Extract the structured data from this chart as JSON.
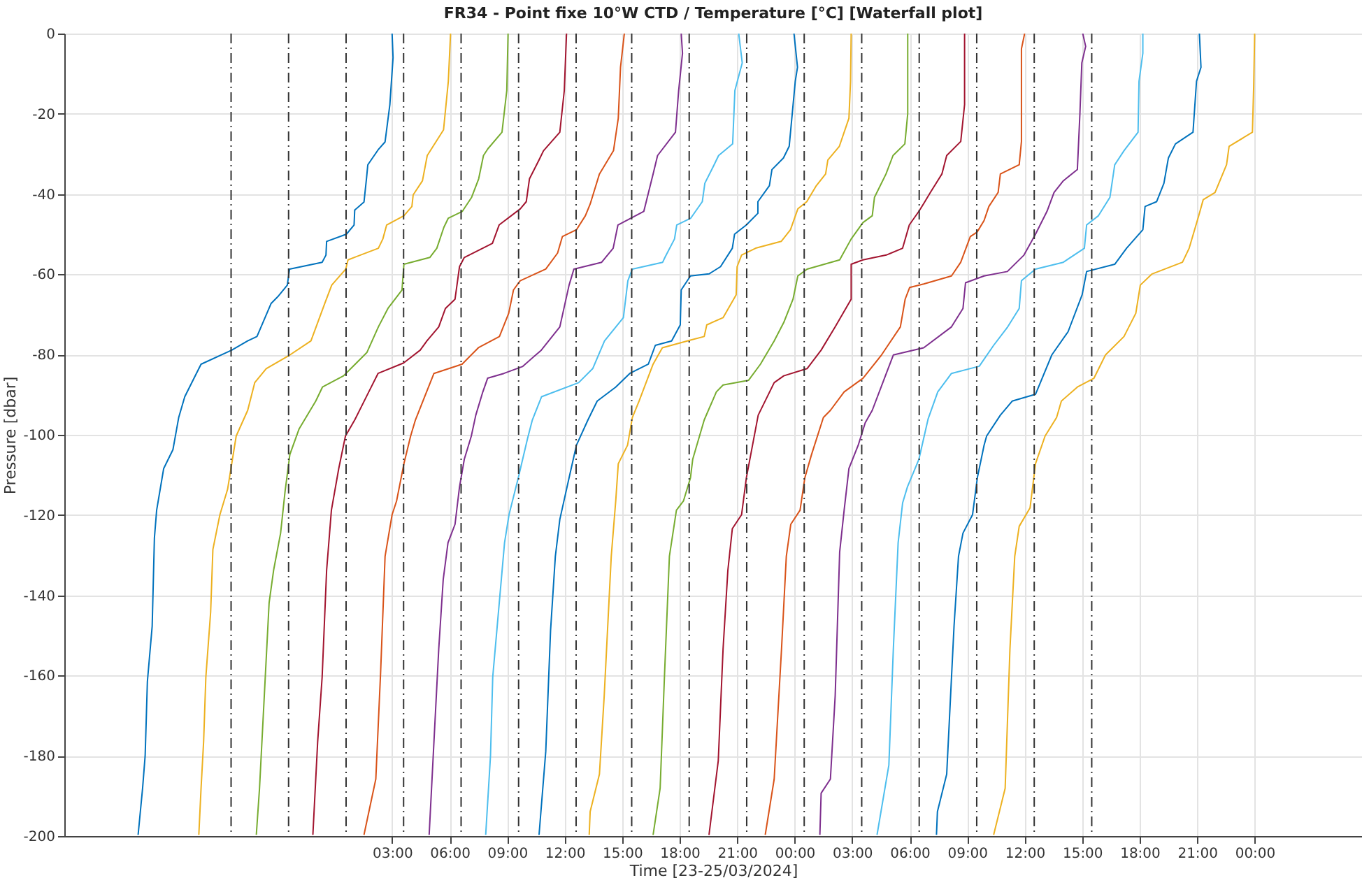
{
  "chart_data": {
    "type": "line",
    "title": "FR34 - Point fixe 10°W CTD / Temperature [°C] [Waterfall plot]",
    "xlabel": "Time [23-25/03/2024]",
    "ylabel": "Pressure [dbar]",
    "xlim": [
      "2024-03-22T09:54",
      "2024-03-25T05:36"
    ],
    "ylim": [
      -200,
      0
    ],
    "xticks": [
      {
        "value": "2024-03-23T03:00",
        "label": "03:00"
      },
      {
        "value": "2024-03-23T06:00",
        "label": "06:00"
      },
      {
        "value": "2024-03-23T09:00",
        "label": "09:00"
      },
      {
        "value": "2024-03-23T12:00",
        "label": "12:00"
      },
      {
        "value": "2024-03-23T15:00",
        "label": "15:00"
      },
      {
        "value": "2024-03-23T18:00",
        "label": "18:00"
      },
      {
        "value": "2024-03-23T21:00",
        "label": "21:00"
      },
      {
        "value": "2024-03-24T00:00",
        "label": "00:00"
      },
      {
        "value": "2024-03-24T03:00",
        "label": "03:00"
      },
      {
        "value": "2024-03-24T06:00",
        "label": "06:00"
      },
      {
        "value": "2024-03-24T09:00",
        "label": "09:00"
      },
      {
        "value": "2024-03-24T12:00",
        "label": "12:00"
      },
      {
        "value": "2024-03-24T15:00",
        "label": "15:00"
      },
      {
        "value": "2024-03-24T18:00",
        "label": "18:00"
      },
      {
        "value": "2024-03-24T21:00",
        "label": "21:00"
      },
      {
        "value": "2024-03-25T00:00",
        "label": "00:00"
      }
    ],
    "yticks": [
      -200,
      -180,
      -160,
      -140,
      -120,
      -100,
      -80,
      -60,
      -40,
      -20,
      0
    ],
    "grid": true,
    "line_style": "solid",
    "series": [
      {
        "color": "#0072bd",
        "x": [
          "2024-03-23T03:00",
          "2024-03-23T03:03",
          "2024-03-23T02:53",
          "2024-03-23T02:38",
          "2024-03-23T02:16",
          "2024-03-23T01:44",
          "2024-03-23T01:40",
          "2024-03-23T01:32",
          "2024-03-23T01:03",
          "2024-03-23T01:01",
          "2024-03-23T00:37",
          "2024-03-22T23:35",
          "2024-03-22T23:33",
          "2024-03-22T23:21",
          "2024-03-22T21:39",
          "2024-03-22T21:32",
          "2024-03-22T21:02",
          "2024-03-22T20:41",
          "2024-03-22T19:57",
          "2024-03-22T19:28",
          "2024-03-22T18:38",
          "2024-03-22T17:02",
          "2024-03-22T16:40",
          "2024-03-22T16:11",
          "2024-03-22T15:52",
          "2024-03-22T15:34",
          "2024-03-22T15:05",
          "2024-03-22T14:43",
          "2024-03-22T14:36",
          "2024-03-22T14:29",
          "2024-03-22T14:14",
          "2024-03-22T14:07",
          "2024-03-22T13:59",
          "2024-03-22T13:45"
        ],
        "values": [
          0,
          -6,
          -17.7,
          -27,
          -29,
          -32.7,
          -36,
          -42,
          -44,
          -47.7,
          -50,
          -51.8,
          -55.2,
          -57,
          -58.7,
          -62.7,
          -65.6,
          -67.3,
          -75.5,
          -76.6,
          -78.9,
          -82.4,
          -85.9,
          -90.5,
          -95.7,
          -103.7,
          -108.4,
          -118.8,
          -125.7,
          -147.7,
          -161.5,
          -180,
          -188.1,
          -199.7
        ]
      },
      {
        "color": "#edb120",
        "x": [
          "2024-03-23T06:03",
          "2024-03-23T05:56",
          "2024-03-23T05:41",
          "2024-03-23T04:50",
          "2024-03-23T04:35",
          "2024-03-23T04:06",
          "2024-03-23T04:02",
          "2024-03-23T03:37",
          "2024-03-23T02:43",
          "2024-03-23T02:31",
          "2024-03-23T02:17",
          "2024-03-23T00:42",
          "2024-03-23T00:35",
          "2024-03-22T23:51",
          "2024-03-22T23:29",
          "2024-03-22T22:46",
          "2024-03-22T21:40",
          "2024-03-22T20:26",
          "2024-03-22T19:50",
          "2024-03-22T19:28",
          "2024-03-22T18:52",
          "2024-03-22T18:25",
          "2024-03-22T18:01",
          "2024-03-22T17:39",
          "2024-03-22T17:32",
          "2024-03-22T17:17",
          "2024-03-22T17:10",
          "2024-03-22T17:02",
          "2024-03-22T16:55"
        ],
        "values": [
          0,
          -11.9,
          -24,
          -30.4,
          -36.7,
          -40.2,
          -43.1,
          -45.4,
          -47.7,
          -51.2,
          -53.5,
          -56.4,
          -58.7,
          -62.7,
          -67.3,
          -76.6,
          -80.1,
          -83.5,
          -87,
          -93.9,
          -100.3,
          -113.6,
          -119.9,
          -128.6,
          -144.2,
          -160.4,
          -176.5,
          -188.1,
          -199.7
        ]
      },
      {
        "color": "#77ac30",
        "x": [
          "2024-03-23T09:03",
          "2024-03-23T08:59",
          "2024-03-23T08:44",
          "2024-03-23T08:00",
          "2024-03-23T07:46",
          "2024-03-23T07:31",
          "2024-03-23T07:09",
          "2024-03-23T06:40",
          "2024-03-23T05:56",
          "2024-03-23T05:42",
          "2024-03-23T05:20",
          "2024-03-23T04:58",
          "2024-03-23T03:37",
          "2024-03-23T03:31",
          "2024-03-23T02:47",
          "2024-03-23T02:17",
          "2024-03-23T01:41",
          "2024-03-23T00:28",
          "2024-03-22T23:22",
          "2024-03-22T23:01",
          "2024-03-22T22:09",
          "2024-03-22T21:40",
          "2024-03-22T21:25",
          "2024-03-22T21:11",
          "2024-03-22T20:49",
          "2024-03-22T20:35",
          "2024-03-22T20:20",
          "2024-03-22T20:05",
          "2024-03-22T19:55"
        ],
        "values": [
          0,
          -14.2,
          -24.6,
          -28.7,
          -30.4,
          -36.2,
          -40.8,
          -44.3,
          -46,
          -48.3,
          -53.5,
          -55.8,
          -57.5,
          -63.9,
          -68.5,
          -73.1,
          -79.5,
          -85.3,
          -88.1,
          -91.6,
          -98.5,
          -104.9,
          -114.1,
          -124.5,
          -133.8,
          -141.9,
          -165,
          -188.1,
          -199.7
        ]
      },
      {
        "color": "#a2142f",
        "x": [
          "2024-03-23T12:06",
          "2024-03-23T11:59",
          "2024-03-23T11:45",
          "2024-03-23T10:54",
          "2024-03-23T10:40",
          "2024-03-23T10:10",
          "2024-03-23T10:00",
          "2024-03-23T09:41",
          "2024-03-23T08:35",
          "2024-03-23T08:14",
          "2024-03-23T06:46",
          "2024-03-23T06:31",
          "2024-03-23T06:17",
          "2024-03-23T05:47",
          "2024-03-23T05:26",
          "2024-03-23T04:49",
          "2024-03-23T04:28",
          "2024-03-23T03:36",
          "2024-03-23T02:16",
          "2024-03-23T01:47",
          "2024-03-23T01:03",
          "2024-03-23T00:34",
          "2024-03-23T00:13",
          "2024-03-22T23:50",
          "2024-03-22T23:35",
          "2024-03-22T23:21",
          "2024-03-22T23:07",
          "2024-03-22T22:52"
        ],
        "values": [
          0,
          -14.2,
          -24.6,
          -29.2,
          -31.5,
          -36.2,
          -41.9,
          -43.7,
          -47.7,
          -52.3,
          -55.8,
          -58.1,
          -66.2,
          -68.5,
          -73.1,
          -76.6,
          -78.9,
          -82.1,
          -84.7,
          -89.3,
          -96.3,
          -100.3,
          -108.4,
          -118.8,
          -133.8,
          -160.4,
          -176.5,
          -199.7
        ]
      },
      {
        "color": "#d95319",
        "x": [
          "2024-03-23T15:07",
          "2024-03-23T14:55",
          "2024-03-23T14:48",
          "2024-03-23T14:33",
          "2024-03-23T13:49",
          "2024-03-23T13:20",
          "2024-03-23T13:05",
          "2024-03-23T12:37",
          "2024-03-23T11:53",
          "2024-03-23T11:38",
          "2024-03-23T11:01",
          "2024-03-23T09:41",
          "2024-03-23T09:20",
          "2024-03-23T09:05",
          "2024-03-23T08:36",
          "2024-03-23T07:30",
          "2024-03-23T06:39",
          "2024-03-23T05:11",
          "2024-03-23T04:42",
          "2024-03-23T04:13",
          "2024-03-23T03:58",
          "2024-03-23T03:51",
          "2024-03-23T03:37",
          "2024-03-23T03:14",
          "2024-03-23T03:00",
          "2024-03-23T02:38",
          "2024-03-23T02:24",
          "2024-03-23T02:09",
          "2024-03-23T01:32"
        ],
        "values": [
          0,
          -8.4,
          -21.1,
          -29.2,
          -35,
          -42.5,
          -45.4,
          -48.9,
          -50.6,
          -54.7,
          -58.7,
          -61.6,
          -63.9,
          -69.7,
          -75.5,
          -78.3,
          -82.4,
          -84.7,
          -90.5,
          -96.3,
          -100.3,
          -102.6,
          -107.2,
          -116.5,
          -119.9,
          -130.3,
          -159.3,
          -185.8,
          -199.7
        ]
      },
      {
        "color": "#7e2f8e",
        "x": [
          "2024-03-23T18:05",
          "2024-03-23T18:09",
          "2024-03-23T17:57",
          "2024-03-23T17:47",
          "2024-03-23T16:51",
          "2024-03-23T16:37",
          "2024-03-23T16:08",
          "2024-03-23T14:47",
          "2024-03-23T14:32",
          "2024-03-23T13:56",
          "2024-03-23T12:29",
          "2024-03-23T12:14",
          "2024-03-23T11:45",
          "2024-03-23T10:47",
          "2024-03-23T09:48",
          "2024-03-23T08:50",
          "2024-03-23T07:59",
          "2024-03-23T07:44",
          "2024-03-23T07:22",
          "2024-03-23T07:08",
          "2024-03-23T06:46",
          "2024-03-23T06:31",
          "2024-03-23T06:17",
          "2024-03-23T05:55",
          "2024-03-23T05:40",
          "2024-03-23T05:26",
          "2024-03-23T05:11",
          "2024-03-23T04:56"
        ],
        "values": [
          0,
          -4.9,
          -14.2,
          -24.6,
          -30.4,
          -35,
          -44.3,
          -47.7,
          -53.5,
          -57,
          -58.7,
          -62.7,
          -73.1,
          -78.9,
          -83,
          -84.7,
          -85.9,
          -89.3,
          -95.1,
          -100.3,
          -106.1,
          -113,
          -122.3,
          -126.9,
          -136.1,
          -153.4,
          -176.5,
          -199.7
        ]
      },
      {
        "color": "#4dbeee",
        "x": [
          "2024-03-23T21:05",
          "2024-03-23T21:16",
          "2024-03-23T20:53",
          "2024-03-23T20:46",
          "2024-03-23T20:02",
          "2024-03-23T19:48",
          "2024-03-23T19:19",
          "2024-03-23T19:11",
          "2024-03-23T18:35",
          "2024-03-23T17:51",
          "2024-03-23T17:44",
          "2024-03-23T17:14",
          "2024-03-23T17:07",
          "2024-03-23T15:32",
          "2024-03-23T15:18",
          "2024-03-23T15:04",
          "2024-03-23T14:05",
          "2024-03-23T13:28",
          "2024-03-23T12:44",
          "2024-03-23T10:48",
          "2024-03-23T10:19",
          "2024-03-23T10:04",
          "2024-03-23T09:35",
          "2024-03-23T09:06",
          "2024-03-23T08:52",
          "2024-03-23T08:29",
          "2024-03-23T08:15",
          "2024-03-23T08:08",
          "2024-03-23T07:53"
        ],
        "values": [
          0,
          -7.3,
          -14.2,
          -27.5,
          -30.4,
          -32.7,
          -37.3,
          -41.9,
          -46,
          -47.7,
          -51.2,
          -55.8,
          -57,
          -58.7,
          -61.6,
          -70.8,
          -76.6,
          -83.5,
          -87,
          -90.5,
          -96.3,
          -100.9,
          -110.7,
          -119.9,
          -126.9,
          -147.7,
          -160.4,
          -180,
          -199.7
        ]
      },
      {
        "color": "#0072bd",
        "x": [
          "2024-03-23T23:58",
          "2024-03-24T00:09",
          "2024-03-24T00:02",
          "2024-03-23T23:43",
          "2024-03-23T23:25",
          "2024-03-23T22:49",
          "2024-03-23T22:41",
          "2024-03-23T22:05",
          "2024-03-23T22:05",
          "2024-03-23T21:29",
          "2024-03-23T20:52",
          "2024-03-23T20:45",
          "2024-03-23T20:08",
          "2024-03-23T19:32",
          "2024-03-23T18:34",
          "2024-03-23T18:05",
          "2024-03-23T18:02",
          "2024-03-23T17:35",
          "2024-03-23T16:44",
          "2024-03-23T16:22",
          "2024-03-23T15:24",
          "2024-03-23T14:40",
          "2024-03-23T13:42",
          "2024-03-23T13:13",
          "2024-03-23T12:37",
          "2024-03-23T12:14",
          "2024-03-23T11:45",
          "2024-03-23T11:31",
          "2024-03-23T11:16",
          "2024-03-23T11:01",
          "2024-03-23T10:40"
        ],
        "values": [
          0,
          -8.4,
          -11.9,
          -28.1,
          -31,
          -33.9,
          -37.9,
          -41.9,
          -44.8,
          -47.7,
          -50,
          -53.5,
          -58.1,
          -59.9,
          -60.4,
          -63.9,
          -72.6,
          -76.6,
          -77.7,
          -82.4,
          -84.7,
          -88.1,
          -91.6,
          -96.3,
          -102.6,
          -110.7,
          -121.1,
          -130.3,
          -148.8,
          -178.9,
          -199.7
        ]
      },
      {
        "color": "#edb120",
        "x": [
          "2024-03-24T02:57",
          "2024-03-24T02:55",
          "2024-03-24T02:50",
          "2024-03-24T02:20",
          "2024-03-24T01:44",
          "2024-03-24T01:37",
          "2024-03-24T01:08",
          "2024-03-24T00:38",
          "2024-03-24T00:10",
          "2024-03-23T23:47",
          "2024-03-23T23:18",
          "2024-03-23T21:58",
          "2024-03-23T21:14",
          "2024-03-23T21:00",
          "2024-03-23T20:57",
          "2024-03-23T20:16",
          "2024-03-23T19:25",
          "2024-03-23T19:17",
          "2024-03-23T18:34",
          "2024-03-23T17:06",
          "2024-03-23T16:37",
          "2024-03-23T15:53",
          "2024-03-23T15:32",
          "2024-03-23T15:17",
          "2024-03-23T14:48",
          "2024-03-23T14:40",
          "2024-03-23T14:26",
          "2024-03-23T14:04",
          "2024-03-23T13:49",
          "2024-03-23T13:20",
          "2024-03-23T13:17"
        ],
        "values": [
          0,
          -11.9,
          -21.1,
          -28.1,
          -31.5,
          -35,
          -37.9,
          -41.9,
          -43.7,
          -48.9,
          -51.8,
          -53.5,
          -55.2,
          -58.1,
          -65.1,
          -70.8,
          -72.6,
          -75.5,
          -76.4,
          -78.3,
          -82.4,
          -91.6,
          -95.7,
          -102.6,
          -107.2,
          -116.5,
          -130.3,
          -165,
          -184.6,
          -193.9,
          -199.7
        ]
      },
      {
        "color": "#77ac30",
        "x": [
          "2024-03-24T05:54",
          "2024-03-24T05:54",
          "2024-03-24T05:45",
          "2024-03-24T05:08",
          "2024-03-24T04:46",
          "2024-03-24T04:10",
          "2024-03-24T04:03",
          "2024-03-24T03:34",
          "2024-03-24T02:57",
          "2024-03-24T02:21",
          "2024-03-24T00:39",
          "2024-03-24T00:10",
          "2024-03-23T23:55",
          "2024-03-23T23:26",
          "2024-03-23T22:56",
          "2024-03-23T22:13",
          "2024-03-23T21:36",
          "2024-03-23T20:16",
          "2024-03-23T19:55",
          "2024-03-23T19:17",
          "2024-03-23T18:41",
          "2024-03-23T18:34",
          "2024-03-23T18:12",
          "2024-03-23T17:50",
          "2024-03-23T17:28",
          "2024-03-23T17:13",
          "2024-03-23T16:59",
          "2024-03-23T16:37"
        ],
        "values": [
          0,
          -20,
          -27.5,
          -30.4,
          -35,
          -40.8,
          -45.4,
          -47.1,
          -51.2,
          -56.4,
          -58.7,
          -60.4,
          -66.2,
          -72,
          -76.6,
          -82.4,
          -86.4,
          -87.6,
          -89.3,
          -96.3,
          -106.1,
          -110.7,
          -116.5,
          -118.8,
          -130.3,
          -159.3,
          -188.1,
          -199.7
        ]
      },
      {
        "color": "#a2142f",
        "x": [
          "2024-03-24T08:52",
          "2024-03-24T08:52",
          "2024-03-24T08:40",
          "2024-03-24T07:56",
          "2024-03-24T07:41",
          "2024-03-24T07:05",
          "2024-03-24T06:43",
          "2024-03-24T06:29",
          "2024-03-24T05:59",
          "2024-03-24T05:38",
          "2024-03-24T04:47",
          "2024-03-24T03:34",
          "2024-03-24T02:57",
          "2024-03-24T02:57",
          "2024-03-24T02:07",
          "2024-03-24T01:23",
          "2024-03-24T00:39",
          "2024-03-23T23:26",
          "2024-03-23T22:56",
          "2024-03-23T22:06",
          "2024-03-23T21:29",
          "2024-03-23T21:14",
          "2024-03-23T20:45",
          "2024-03-23T20:31",
          "2024-03-23T20:16",
          "2024-03-23T20:01",
          "2024-03-23T19:32"
        ],
        "values": [
          0,
          -17.7,
          -26.9,
          -30.4,
          -35,
          -39.6,
          -42.5,
          -44.3,
          -47.7,
          -53.5,
          -55.2,
          -56.4,
          -57.5,
          -66.2,
          -73.1,
          -78.9,
          -83.5,
          -85.3,
          -87,
          -95.1,
          -110.7,
          -119.9,
          -123.4,
          -133.8,
          -153.4,
          -181.2,
          -199.7
        ]
      },
      {
        "color": "#d95319",
        "x": [
          "2024-03-24T12:00",
          "2024-03-24T11:50",
          "2024-03-24T11:50",
          "2024-03-24T11:43",
          "2024-03-24T10:44",
          "2024-03-24T10:37",
          "2024-03-24T10:08",
          "2024-03-24T09:53",
          "2024-03-24T09:31",
          "2024-03-24T09:10",
          "2024-03-24T08:40",
          "2024-03-24T08:11",
          "2024-03-24T06:44",
          "2024-03-24T06:00",
          "2024-03-24T05:46",
          "2024-03-24T05:31",
          "2024-03-24T04:32",
          "2024-03-24T03:34",
          "2024-03-24T02:35",
          "2024-03-24T01:52",
          "2024-03-24T01:30",
          "2024-03-24T00:53",
          "2024-03-24T00:32",
          "2024-03-24T00:17",
          "2024-03-23T23:48",
          "2024-03-23T23:34",
          "2024-03-23T23:19",
          "2024-03-23T22:56",
          "2024-03-23T22:28"
        ],
        "values": [
          0,
          -3.8,
          -26.9,
          -32.7,
          -35,
          -39.6,
          -43.1,
          -46.6,
          -49.5,
          -50.6,
          -57,
          -60.4,
          -62.4,
          -63.3,
          -66.2,
          -73.1,
          -80.1,
          -85.9,
          -89.3,
          -93.9,
          -95.7,
          -104.9,
          -110.7,
          -118.8,
          -122.3,
          -130.3,
          -153.4,
          -185.8,
          -199.7
        ]
      },
      {
        "color": "#7e2f8e",
        "x": [
          "2024-03-24T15:02",
          "2024-03-24T15:11",
          "2024-03-24T14:59",
          "2024-03-24T14:53",
          "2024-03-24T14:45",
          "2024-03-24T14:01",
          "2024-03-24T13:32",
          "2024-03-24T13:10",
          "2024-03-24T12:34",
          "2024-03-24T11:58",
          "2024-03-24T11:06",
          "2024-03-24T09:53",
          "2024-03-24T08:55",
          "2024-03-24T08:47",
          "2024-03-24T08:11",
          "2024-03-24T06:44",
          "2024-03-24T05:09",
          "2024-03-24T04:47",
          "2024-03-24T04:03",
          "2024-03-24T03:41",
          "2024-03-24T03:19",
          "2024-03-24T02:50",
          "2024-03-24T02:35",
          "2024-03-24T02:21",
          "2024-03-24T02:07",
          "2024-03-24T01:52",
          "2024-03-24T01:23",
          "2024-03-24T01:19"
        ],
        "values": [
          0,
          -3.2,
          -7.3,
          -20,
          -33.9,
          -36.7,
          -39.6,
          -44.3,
          -50,
          -55.2,
          -59.3,
          -60.4,
          -62.1,
          -68.5,
          -73.1,
          -78.3,
          -80.1,
          -84.7,
          -93.9,
          -97,
          -102.6,
          -108.4,
          -118.8,
          -129.2,
          -165,
          -185.8,
          -189.3,
          -199.7
        ]
      },
      {
        "color": "#4dbeee",
        "x": [
          "2024-03-24T18:10",
          "2024-03-24T18:10",
          "2024-03-24T17:58",
          "2024-03-24T17:55",
          "2024-03-24T17:11",
          "2024-03-24T16:42",
          "2024-03-24T16:27",
          "2024-03-24T15:51",
          "2024-03-24T15:14",
          "2024-03-24T15:07",
          "2024-03-24T14:01",
          "2024-03-24T12:34",
          "2024-03-24T11:50",
          "2024-03-24T11:43",
          "2024-03-24T11:07",
          "2024-03-24T10:23",
          "2024-03-24T09:38",
          "2024-03-24T08:11",
          "2024-03-24T07:28",
          "2024-03-24T06:58",
          "2024-03-24T06:29",
          "2024-03-24T05:53",
          "2024-03-24T05:38",
          "2024-03-24T05:24",
          "2024-03-24T05:09",
          "2024-03-24T04:55",
          "2024-03-24T04:18"
        ],
        "values": [
          0,
          -4.9,
          -11.9,
          -24.6,
          -29.2,
          -32.7,
          -40.8,
          -45.4,
          -47.7,
          -53.5,
          -57,
          -58.7,
          -61.6,
          -68.5,
          -73.1,
          -77.7,
          -82.9,
          -84.7,
          -89.3,
          -96,
          -106.1,
          -113,
          -117,
          -126.9,
          -153.4,
          -182.3,
          -199.7
        ]
      },
      {
        "color": "#0072bd",
        "x": [
          "2024-03-24T21:07",
          "2024-03-24T21:12",
          "2024-03-24T20:58",
          "2024-03-24T20:47",
          "2024-03-24T19:52",
          "2024-03-24T19:30",
          "2024-03-24T19:16",
          "2024-03-24T18:53",
          "2024-03-24T18:17",
          "2024-03-24T18:10",
          "2024-03-24T17:19",
          "2024-03-24T16:42",
          "2024-03-24T15:14",
          "2024-03-24T15:00",
          "2024-03-24T14:16",
          "2024-03-24T13:25",
          "2024-03-24T12:34",
          "2024-03-24T11:21",
          "2024-03-24T10:44",
          "2024-03-24T10:01",
          "2024-03-24T09:53",
          "2024-03-24T09:32",
          "2024-03-24T09:17",
          "2024-03-24T08:47",
          "2024-03-24T08:33",
          "2024-03-24T08:19",
          "2024-03-24T07:56",
          "2024-03-24T07:27",
          "2024-03-24T07:24"
        ],
        "values": [
          0,
          -8.4,
          -11.9,
          -24.6,
          -27.5,
          -31,
          -37.3,
          -41.9,
          -43.1,
          -48.9,
          -53.5,
          -57.5,
          -59.3,
          -65.1,
          -74.3,
          -80.1,
          -89.9,
          -91.6,
          -95.1,
          -100.3,
          -102.6,
          -110.7,
          -119.9,
          -124.5,
          -130.3,
          -147.7,
          -184.6,
          -193.9,
          -199.7
        ]
      },
      {
        "color": "#edb120",
        "x": [
          "2024-03-25T00:00",
          "2024-03-24T23:57",
          "2024-03-24T23:53",
          "2024-03-24T22:40",
          "2024-03-24T22:32",
          "2024-03-24T21:56",
          "2024-03-24T21:19",
          "2024-03-24T21:05",
          "2024-03-24T20:35",
          "2024-03-24T20:14",
          "2024-03-24T18:39",
          "2024-03-24T18:02",
          "2024-03-24T17:48",
          "2024-03-24T17:11",
          "2024-03-24T16:13",
          "2024-03-24T15:37",
          "2024-03-24T14:45",
          "2024-03-24T13:55",
          "2024-03-24T13:40",
          "2024-03-24T13:04",
          "2024-03-24T12:34",
          "2024-03-24T12:17",
          "2024-03-24T11:43",
          "2024-03-24T11:29",
          "2024-03-24T11:14",
          "2024-03-24T10:59",
          "2024-03-24T10:23"
        ],
        "values": [
          0,
          -13.1,
          -24.6,
          -28.1,
          -32.7,
          -39.6,
          -41.4,
          -45.4,
          -53.5,
          -57,
          -59.9,
          -62.7,
          -69.7,
          -75.5,
          -80.1,
          -85.9,
          -88.1,
          -91.6,
          -95.7,
          -100.3,
          -107.2,
          -118.2,
          -122.8,
          -130.3,
          -153.4,
          -188.1,
          -199.7
        ]
      }
    ],
    "ref_lines": [
      {
        "axis": "x",
        "value": "2024-03-22T18:36",
        "color": "#333333",
        "line_style": "dashed"
      },
      {
        "axis": "x",
        "value": "2024-03-22T21:36",
        "color": "#333333",
        "line_style": "dashed"
      },
      {
        "axis": "x",
        "value": "2024-03-23T00:36",
        "color": "#333333",
        "line_style": "dashed"
      },
      {
        "axis": "x",
        "value": "2024-03-23T03:36",
        "color": "#333333",
        "line_style": "dashed"
      },
      {
        "axis": "x",
        "value": "2024-03-23T06:36",
        "color": "#333333",
        "line_style": "dashed"
      },
      {
        "axis": "x",
        "value": "2024-03-23T09:36",
        "color": "#333333",
        "line_style": "dashed"
      },
      {
        "axis": "x",
        "value": "2024-03-23T12:36",
        "color": "#333333",
        "line_style": "dashed"
      },
      {
        "axis": "x",
        "value": "2024-03-23T15:30",
        "color": "#333333",
        "line_style": "dashed"
      },
      {
        "axis": "x",
        "value": "2024-03-23T18:30",
        "color": "#333333",
        "line_style": "dashed"
      },
      {
        "axis": "x",
        "value": "2024-03-23T21:30",
        "color": "#333333",
        "line_style": "dashed"
      },
      {
        "axis": "x",
        "value": "2024-03-24T00:30",
        "color": "#333333",
        "line_style": "dashed"
      },
      {
        "axis": "x",
        "value": "2024-03-24T03:30",
        "color": "#333333",
        "line_style": "dashed"
      },
      {
        "axis": "x",
        "value": "2024-03-24T06:30",
        "color": "#333333",
        "line_style": "dashed"
      },
      {
        "axis": "x",
        "value": "2024-03-24T09:30",
        "color": "#333333",
        "line_style": "dashed"
      },
      {
        "axis": "x",
        "value": "2024-03-24T12:30",
        "color": "#333333",
        "line_style": "dashed"
      },
      {
        "axis": "x",
        "value": "2024-03-24T15:30",
        "color": "#333333",
        "line_style": "dashed"
      }
    ]
  }
}
